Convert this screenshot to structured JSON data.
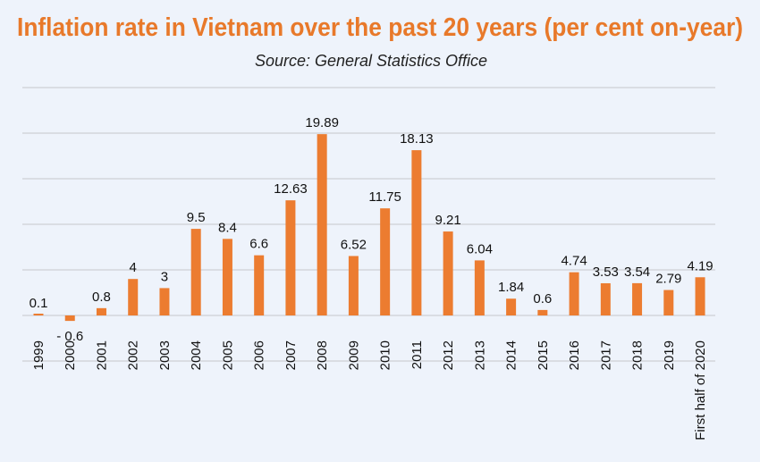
{
  "chart_data": {
    "type": "bar",
    "title": "Inflation rate in Vietnam over the past 20 years (per cent on-year)",
    "subtitle": "Source: General Statistics Office",
    "categories": [
      "1999",
      "2000",
      "2001",
      "2002",
      "2003",
      "2004",
      "2005",
      "2006",
      "2007",
      "2008",
      "2009",
      "2010",
      "2011",
      "2012",
      "2013",
      "2014",
      "2015",
      "2016",
      "2017",
      "2018",
      "2019",
      "First half of 2020"
    ],
    "values": [
      0.1,
      -0.6,
      0.8,
      4,
      3,
      9.5,
      8.4,
      6.6,
      12.63,
      19.89,
      6.52,
      11.75,
      18.13,
      9.21,
      6.04,
      1.84,
      0.6,
      4.74,
      3.53,
      3.54,
      2.79,
      4.19
    ],
    "data_labels": [
      "0.1",
      "- 0.6",
      "0.8",
      "4",
      "3",
      "9.5",
      "8.4",
      "6.6",
      "12.63",
      "19.89",
      "6.52",
      "11.75",
      "18.13",
      "9.21",
      "6.04",
      "1.84",
      "0.6",
      "4.74",
      "3.53",
      "3.54",
      "2.79",
      "4.19"
    ],
    "xlabel": "",
    "ylabel": "",
    "ylim": [
      -5,
      25
    ],
    "gridlines": [
      -5,
      0,
      5,
      10,
      15,
      20,
      25
    ],
    "grid": true,
    "y_tick_labels_shown": false,
    "bar_color": "#ec7c30",
    "title_color": "#e8792a",
    "background": "#eef3fb"
  }
}
